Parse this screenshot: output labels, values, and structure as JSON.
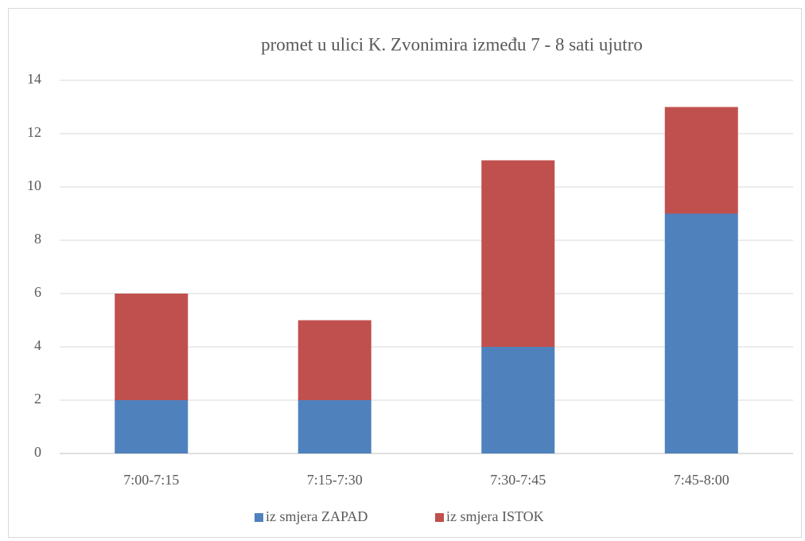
{
  "chart_data": {
    "type": "stacked_bar",
    "title": "promet u ulici K. Zvonimira između 7 - 8 sati ujutro",
    "categories": [
      "7:00-7:15",
      "7:15-7:30",
      "7:30-7:45",
      "7:45-8:00"
    ],
    "series": [
      {
        "name": "iz smjera ZAPAD",
        "color": "#4f81bd",
        "values": [
          2,
          2,
          4,
          9
        ]
      },
      {
        "name": "iz smjera ISTOK",
        "color": "#c0504d",
        "values": [
          4,
          3,
          7,
          4
        ]
      }
    ],
    "ylim": [
      0,
      14
    ],
    "yticks": [
      0,
      2,
      4,
      6,
      8,
      10,
      12,
      14
    ],
    "grid": true,
    "legend": "bottom"
  }
}
